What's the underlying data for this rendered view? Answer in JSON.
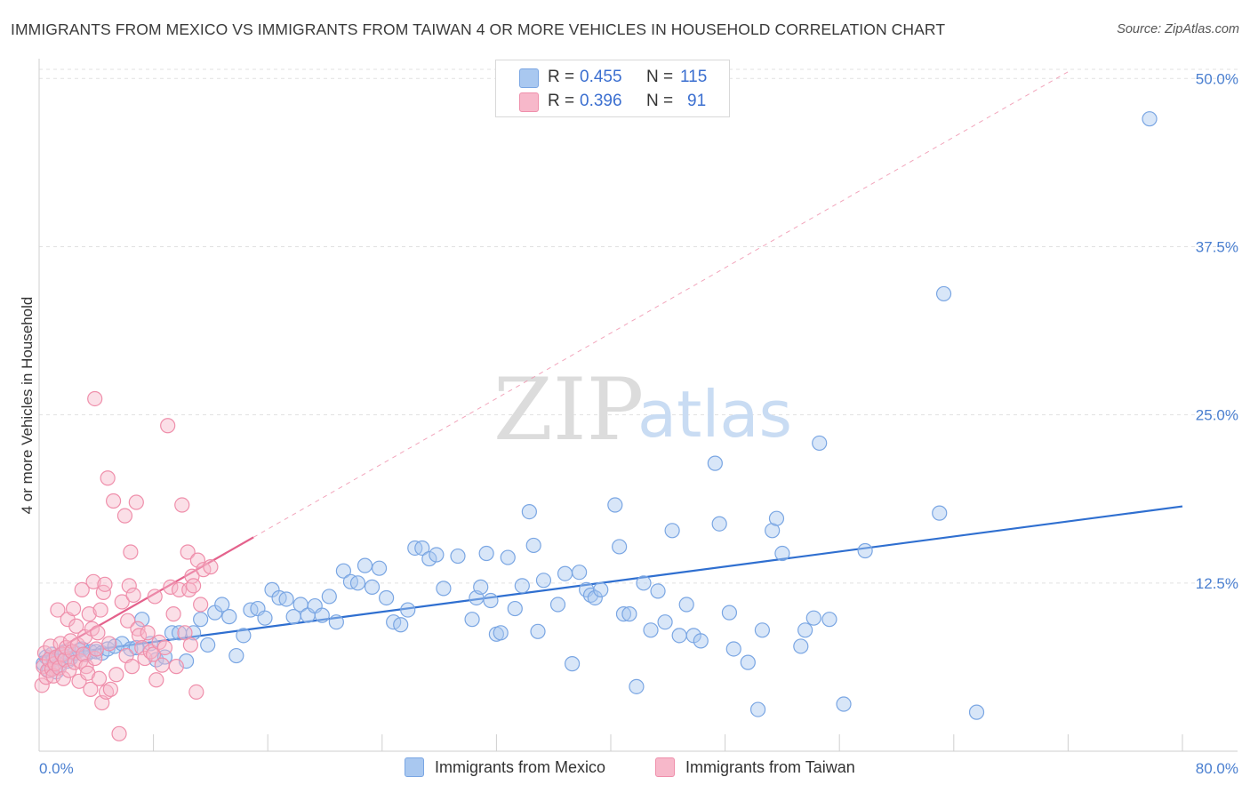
{
  "title": "IMMIGRANTS FROM MEXICO VS IMMIGRANTS FROM TAIWAN 4 OR MORE VEHICLES IN HOUSEHOLD CORRELATION CHART",
  "source": "Source: ZipAtlas.com",
  "watermark": {
    "zip": "ZIP",
    "atlas": "atlas"
  },
  "legend": {
    "r_label": "R =",
    "n_label": "N =",
    "mexico": {
      "r": "0.455",
      "n": "115"
    },
    "taiwan": {
      "r": "0.396",
      "n": "91"
    }
  },
  "bottom_legend": {
    "mexico": "Immigrants from Mexico",
    "taiwan": "Immigrants from Taiwan"
  },
  "colors": {
    "mexico_fill": "#a9c8f0",
    "mexico_stroke": "#7aa6e3",
    "mexico_line": "#2f6fd0",
    "taiwan_fill": "#f7b8ca",
    "taiwan_stroke": "#ef8fab",
    "taiwan_line": "#e4628c",
    "tick_text": "#4a7fd0",
    "grid": "#e1e1e1"
  },
  "chart_data": {
    "type": "scatter",
    "title": "IMMIGRANTS FROM MEXICO VS IMMIGRANTS FROM TAIWAN 4 OR MORE VEHICLES IN HOUSEHOLD CORRELATION CHART",
    "xlabel": "",
    "ylabel": "4 or more Vehicles in Household",
    "xlim": [
      0,
      80
    ],
    "ylim": [
      0,
      52
    ],
    "x_tick_labels": [
      "0.0%",
      "80.0%"
    ],
    "y_ticks": [
      12.5,
      25.0,
      37.5,
      50.0
    ],
    "y_tick_labels": [
      "12.5%",
      "25.0%",
      "37.5%",
      "50.0%"
    ],
    "grid": true,
    "legend_position": "top-center",
    "series": [
      {
        "name": "Immigrants from Mexico",
        "r": 0.455,
        "n": 115,
        "trend": {
          "x0": 0,
          "y0": 7.0,
          "x1": 80,
          "y1": 18.2,
          "style": "solid"
        },
        "points": [
          [
            0.3,
            6.5
          ],
          [
            0.5,
            7.0
          ],
          [
            0.7,
            6.0
          ],
          [
            0.9,
            7.2
          ],
          [
            1.0,
            6.8
          ],
          [
            1.2,
            5.9
          ],
          [
            1.4,
            6.4
          ],
          [
            1.6,
            7.1
          ],
          [
            1.8,
            7.4
          ],
          [
            2.0,
            6.7
          ],
          [
            2.2,
            6.9
          ],
          [
            2.5,
            7.3
          ],
          [
            2.8,
            7.5
          ],
          [
            3.0,
            7.6
          ],
          [
            3.3,
            7.2
          ],
          [
            3.6,
            7.4
          ],
          [
            4.0,
            7.4
          ],
          [
            4.4,
            7.3
          ],
          [
            4.8,
            7.6
          ],
          [
            5.3,
            7.8
          ],
          [
            5.8,
            8.0
          ],
          [
            6.4,
            7.6
          ],
          [
            6.8,
            7.7
          ],
          [
            7.2,
            9.8
          ],
          [
            7.8,
            8.0
          ],
          [
            8.2,
            6.8
          ],
          [
            8.8,
            7.0
          ],
          [
            9.3,
            8.8
          ],
          [
            9.8,
            8.8
          ],
          [
            10.3,
            6.7
          ],
          [
            10.8,
            8.8
          ],
          [
            11.3,
            9.8
          ],
          [
            11.8,
            7.9
          ],
          [
            12.3,
            10.3
          ],
          [
            12.8,
            10.9
          ],
          [
            13.3,
            10.0
          ],
          [
            13.8,
            7.1
          ],
          [
            14.3,
            8.6
          ],
          [
            14.8,
            10.5
          ],
          [
            15.3,
            10.6
          ],
          [
            15.8,
            9.9
          ],
          [
            16.3,
            12.0
          ],
          [
            16.8,
            11.4
          ],
          [
            17.3,
            11.3
          ],
          [
            17.8,
            10.0
          ],
          [
            18.3,
            10.9
          ],
          [
            18.8,
            10.1
          ],
          [
            19.3,
            10.8
          ],
          [
            19.8,
            10.1
          ],
          [
            20.3,
            11.5
          ],
          [
            20.8,
            9.6
          ],
          [
            21.3,
            13.4
          ],
          [
            21.8,
            12.6
          ],
          [
            22.3,
            12.5
          ],
          [
            22.8,
            13.8
          ],
          [
            23.3,
            12.2
          ],
          [
            23.8,
            13.6
          ],
          [
            24.3,
            11.4
          ],
          [
            24.8,
            9.6
          ],
          [
            25.3,
            9.4
          ],
          [
            25.8,
            10.5
          ],
          [
            26.3,
            15.1
          ],
          [
            26.8,
            15.1
          ],
          [
            27.3,
            14.3
          ],
          [
            27.8,
            14.6
          ],
          [
            28.3,
            12.1
          ],
          [
            29.3,
            14.5
          ],
          [
            30.3,
            9.8
          ],
          [
            30.6,
            11.4
          ],
          [
            30.9,
            12.2
          ],
          [
            31.3,
            14.7
          ],
          [
            31.6,
            11.2
          ],
          [
            32.0,
            8.7
          ],
          [
            32.3,
            8.8
          ],
          [
            32.8,
            14.4
          ],
          [
            33.3,
            10.6
          ],
          [
            33.8,
            12.3
          ],
          [
            34.3,
            17.8
          ],
          [
            34.6,
            15.3
          ],
          [
            34.9,
            8.9
          ],
          [
            35.3,
            12.7
          ],
          [
            36.3,
            10.9
          ],
          [
            36.8,
            13.2
          ],
          [
            37.3,
            6.5
          ],
          [
            37.8,
            13.3
          ],
          [
            38.3,
            12.0
          ],
          [
            38.6,
            11.6
          ],
          [
            38.9,
            11.4
          ],
          [
            39.3,
            12.0
          ],
          [
            40.3,
            18.3
          ],
          [
            40.6,
            15.2
          ],
          [
            40.9,
            10.2
          ],
          [
            41.3,
            10.2
          ],
          [
            41.8,
            4.8
          ],
          [
            42.3,
            12.5
          ],
          [
            42.8,
            9.0
          ],
          [
            43.3,
            11.9
          ],
          [
            43.8,
            9.6
          ],
          [
            44.3,
            16.4
          ],
          [
            44.8,
            8.6
          ],
          [
            45.3,
            10.9
          ],
          [
            45.8,
            8.6
          ],
          [
            46.3,
            8.2
          ],
          [
            47.3,
            21.4
          ],
          [
            47.6,
            16.9
          ],
          [
            48.3,
            10.3
          ],
          [
            48.6,
            7.6
          ],
          [
            49.6,
            6.6
          ],
          [
            50.3,
            3.1
          ],
          [
            50.6,
            9.0
          ],
          [
            51.3,
            16.4
          ],
          [
            51.6,
            17.3
          ],
          [
            52.0,
            14.7
          ],
          [
            53.3,
            7.8
          ],
          [
            53.6,
            9.0
          ],
          [
            54.2,
            9.9
          ],
          [
            54.6,
            22.9
          ],
          [
            55.3,
            9.8
          ],
          [
            56.3,
            3.5
          ],
          [
            57.8,
            14.9
          ],
          [
            63.0,
            17.7
          ],
          [
            63.3,
            34.0
          ],
          [
            65.6,
            2.9
          ],
          [
            77.7,
            47.0
          ]
        ]
      },
      {
        "name": "Immigrants from Taiwan",
        "r": 0.396,
        "n": 91,
        "trend": {
          "x0": 0,
          "y0": 6.8,
          "x1": 15,
          "y1": 15.9,
          "style": "solid",
          "extension": {
            "x1": 72,
            "y1": 50.5,
            "style": "dashed"
          }
        },
        "points": [
          [
            0.2,
            4.9
          ],
          [
            0.3,
            6.3
          ],
          [
            0.4,
            7.3
          ],
          [
            0.5,
            5.5
          ],
          [
            0.6,
            6.0
          ],
          [
            0.7,
            6.8
          ],
          [
            0.8,
            7.8
          ],
          [
            0.9,
            6.1
          ],
          [
            1.0,
            5.6
          ],
          [
            1.1,
            6.5
          ],
          [
            1.2,
            7.0
          ],
          [
            1.3,
            10.5
          ],
          [
            1.4,
            6.2
          ],
          [
            1.5,
            8.0
          ],
          [
            1.6,
            7.2
          ],
          [
            1.7,
            5.4
          ],
          [
            1.8,
            6.8
          ],
          [
            1.9,
            7.7
          ],
          [
            2.0,
            9.8
          ],
          [
            2.1,
            6.0
          ],
          [
            2.2,
            8.2
          ],
          [
            2.3,
            7.4
          ],
          [
            2.4,
            10.6
          ],
          [
            2.5,
            6.6
          ],
          [
            2.6,
            9.3
          ],
          [
            2.7,
            7.9
          ],
          [
            2.8,
            5.2
          ],
          [
            2.9,
            6.7
          ],
          [
            3.0,
            12.0
          ],
          [
            3.1,
            7.2
          ],
          [
            3.2,
            8.5
          ],
          [
            3.3,
            6.3
          ],
          [
            3.4,
            5.8
          ],
          [
            3.5,
            10.2
          ],
          [
            3.6,
            4.6
          ],
          [
            3.7,
            9.1
          ],
          [
            3.8,
            12.6
          ],
          [
            3.9,
            6.9
          ],
          [
            4.0,
            7.6
          ],
          [
            4.1,
            8.8
          ],
          [
            4.2,
            5.4
          ],
          [
            4.3,
            10.5
          ],
          [
            4.4,
            3.6
          ],
          [
            4.5,
            11.8
          ],
          [
            4.6,
            12.4
          ],
          [
            4.7,
            4.4
          ],
          [
            4.8,
            20.3
          ],
          [
            4.9,
            8.0
          ],
          [
            5.0,
            4.6
          ],
          [
            5.2,
            18.6
          ],
          [
            5.4,
            5.7
          ],
          [
            5.6,
            1.3
          ],
          [
            5.8,
            11.1
          ],
          [
            6.0,
            17.5
          ],
          [
            6.1,
            7.1
          ],
          [
            6.2,
            9.7
          ],
          [
            6.3,
            12.3
          ],
          [
            6.4,
            14.8
          ],
          [
            6.5,
            6.3
          ],
          [
            6.6,
            11.6
          ],
          [
            6.8,
            18.5
          ],
          [
            6.9,
            9.1
          ],
          [
            7.0,
            8.6
          ],
          [
            7.2,
            7.7
          ],
          [
            7.4,
            6.9
          ],
          [
            7.6,
            8.8
          ],
          [
            7.8,
            7.4
          ],
          [
            8.0,
            7.2
          ],
          [
            8.1,
            11.5
          ],
          [
            8.2,
            5.3
          ],
          [
            8.4,
            8.1
          ],
          [
            8.6,
            6.4
          ],
          [
            8.8,
            7.7
          ],
          [
            9.0,
            24.2
          ],
          [
            9.2,
            12.2
          ],
          [
            9.4,
            10.2
          ],
          [
            9.6,
            6.3
          ],
          [
            9.8,
            12.0
          ],
          [
            10.0,
            18.3
          ],
          [
            10.2,
            8.8
          ],
          [
            10.4,
            14.8
          ],
          [
            10.5,
            12.0
          ],
          [
            10.6,
            7.9
          ],
          [
            10.7,
            13.0
          ],
          [
            10.8,
            12.3
          ],
          [
            11.0,
            4.4
          ],
          [
            11.1,
            14.2
          ],
          [
            11.3,
            10.9
          ],
          [
            11.5,
            13.5
          ],
          [
            12.0,
            13.7
          ],
          [
            3.9,
            26.2
          ]
        ]
      }
    ]
  }
}
